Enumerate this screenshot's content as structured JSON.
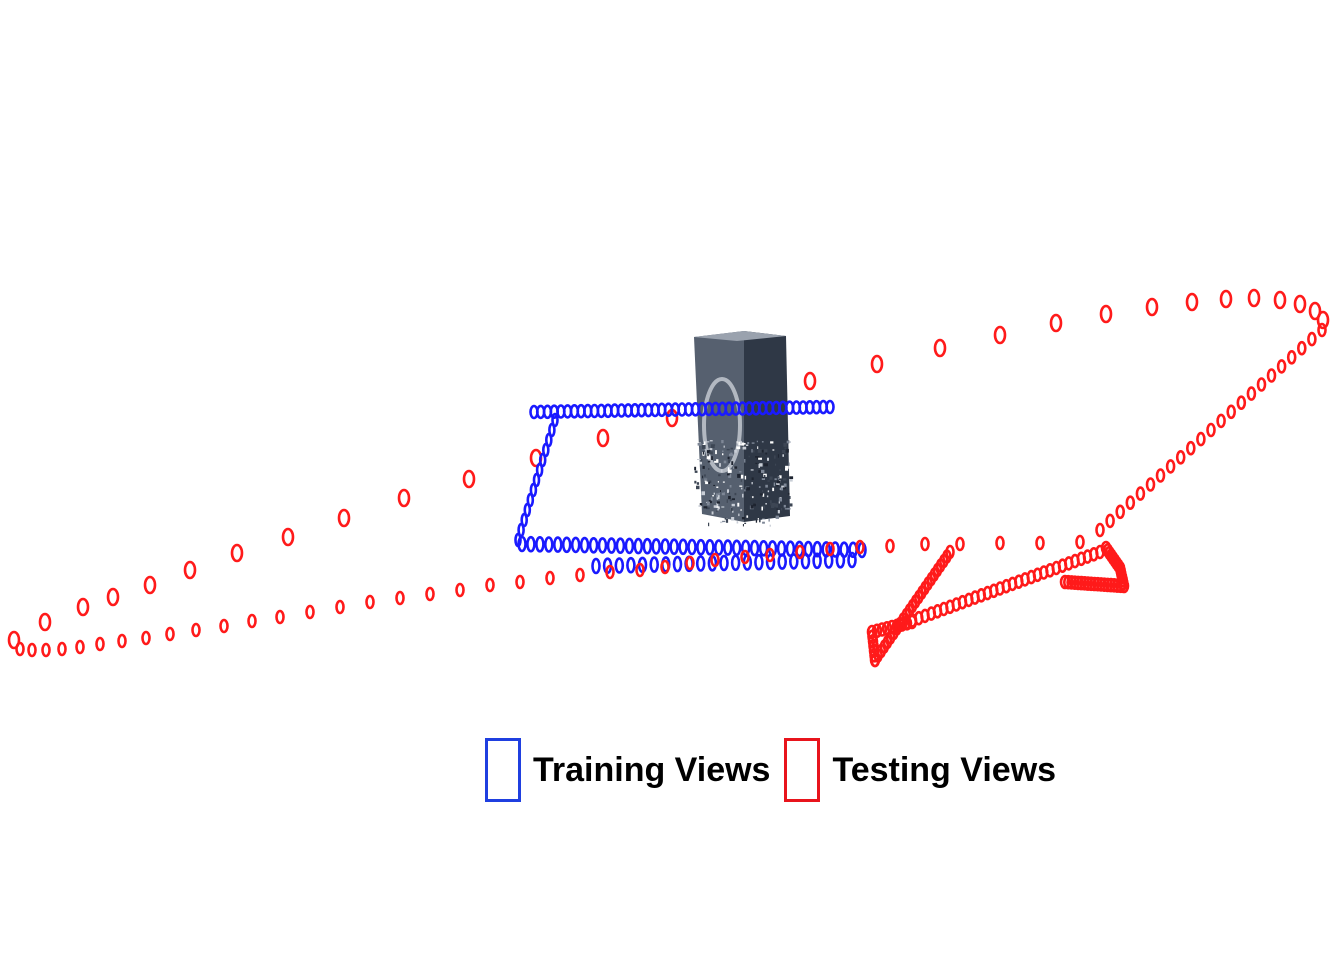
{
  "legend": {
    "training": {
      "label": "Training Views",
      "color": "#1f3fe0"
    },
    "testing": {
      "label": "Testing Views",
      "color": "#e8141c"
    }
  },
  "colors": {
    "training_camera": "#1a1aff",
    "testing_camera": "#ff1a1a",
    "object_dark": "#3d4654",
    "object_mid": "#7e8796",
    "object_light": "#c9ced6"
  },
  "object": {
    "name": "point-cloud-object"
  }
}
